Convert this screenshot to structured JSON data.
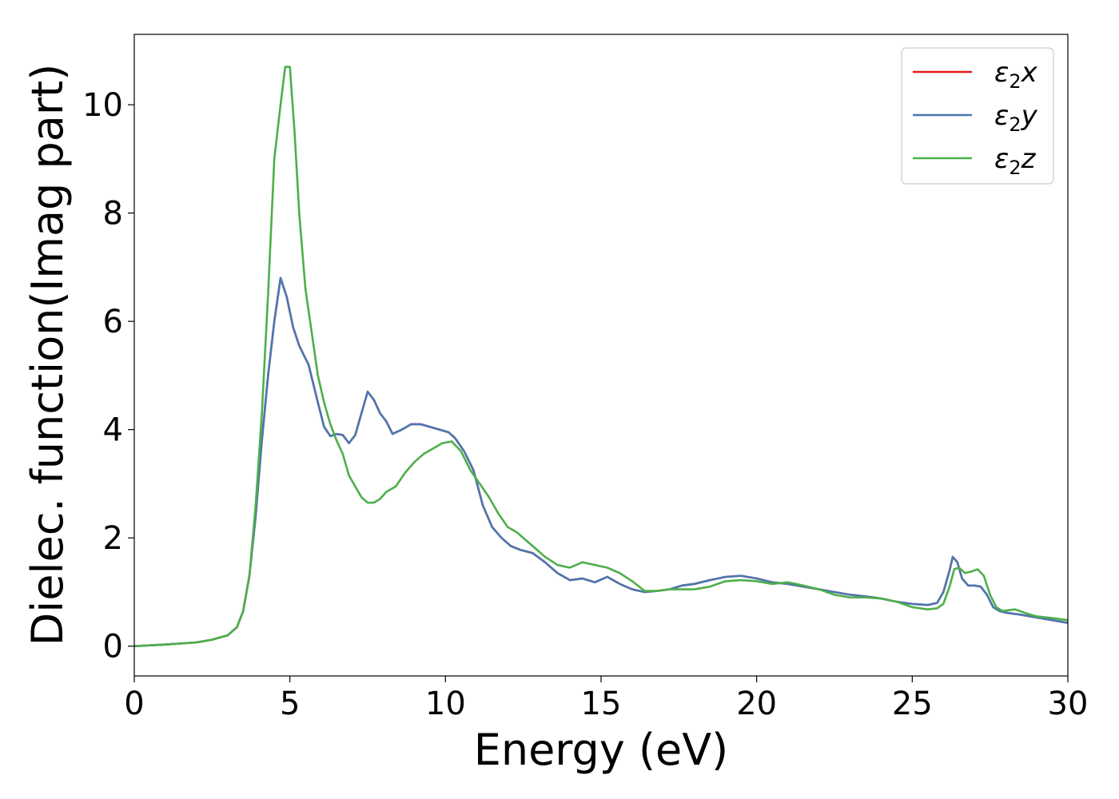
{
  "chart_data": {
    "type": "line",
    "xlabel": "Energy (eV)",
    "ylabel": "Dielec. function(Imag part)",
    "xlim": [
      0,
      30
    ],
    "ylim": [
      -0.55,
      11.3
    ],
    "xticks": [
      0,
      5,
      10,
      15,
      20,
      25,
      30
    ],
    "yticks": [
      0,
      2,
      4,
      6,
      8,
      10
    ],
    "grid": false,
    "legend_position": "top-right",
    "series": [
      {
        "name": "ε₂x",
        "legend_main": "ε",
        "legend_sub": "2",
        "legend_var": "x",
        "color": "#e41a1c",
        "x": [
          0,
          1,
          2,
          2.5,
          3,
          3.3,
          3.5,
          3.7,
          3.9,
          4.1,
          4.3,
          4.5,
          4.7,
          4.9,
          5.1,
          5.3,
          5.6,
          5.9,
          6.1,
          6.3,
          6.5,
          6.7,
          6.9,
          7.1,
          7.3,
          7.5,
          7.7,
          7.9,
          8.1,
          8.3,
          8.6,
          8.9,
          9.2,
          9.5,
          9.8,
          10.1,
          10.3,
          10.6,
          10.9,
          11.2,
          11.5,
          11.8,
          12.1,
          12.4,
          12.8,
          13.2,
          13.6,
          14,
          14.4,
          14.8,
          15.2,
          15.6,
          16,
          16.4,
          16.8,
          17.2,
          17.6,
          18,
          18.5,
          19,
          19.5,
          20,
          20.5,
          21,
          21.5,
          22,
          22.5,
          23,
          23.5,
          24,
          24.5,
          25,
          25.5,
          25.8,
          26,
          26.2,
          26.3,
          26.45,
          26.6,
          26.8,
          27,
          27.2,
          27.4,
          27.6,
          27.8,
          28,
          28.5,
          29,
          29.5,
          30
        ],
        "y": [
          0,
          0.03,
          0.07,
          0.12,
          0.2,
          0.35,
          0.65,
          1.3,
          2.4,
          3.8,
          5.0,
          6.0,
          6.8,
          6.45,
          5.9,
          5.55,
          5.2,
          4.5,
          4.05,
          3.88,
          3.92,
          3.9,
          3.75,
          3.9,
          4.3,
          4.7,
          4.55,
          4.3,
          4.15,
          3.92,
          4.0,
          4.1,
          4.1,
          4.05,
          4.0,
          3.95,
          3.85,
          3.6,
          3.25,
          2.6,
          2.2,
          2.0,
          1.85,
          1.78,
          1.72,
          1.55,
          1.35,
          1.22,
          1.25,
          1.18,
          1.28,
          1.15,
          1.05,
          1.0,
          1.02,
          1.05,
          1.12,
          1.15,
          1.22,
          1.28,
          1.3,
          1.25,
          1.18,
          1.15,
          1.1,
          1.05,
          1.0,
          0.95,
          0.92,
          0.88,
          0.82,
          0.78,
          0.76,
          0.8,
          1.0,
          1.4,
          1.65,
          1.55,
          1.25,
          1.12,
          1.12,
          1.1,
          0.95,
          0.72,
          0.65,
          0.62,
          0.58,
          0.53,
          0.48,
          0.43
        ]
      },
      {
        "name": "ε₂y",
        "legend_main": "ε",
        "legend_sub": "2",
        "legend_var": "y",
        "color": "#4a78b0",
        "x": [
          0,
          1,
          2,
          2.5,
          3,
          3.3,
          3.5,
          3.7,
          3.9,
          4.1,
          4.3,
          4.5,
          4.7,
          4.9,
          5.1,
          5.3,
          5.6,
          5.9,
          6.1,
          6.3,
          6.5,
          6.7,
          6.9,
          7.1,
          7.3,
          7.5,
          7.7,
          7.9,
          8.1,
          8.3,
          8.6,
          8.9,
          9.2,
          9.5,
          9.8,
          10.1,
          10.3,
          10.6,
          10.9,
          11.2,
          11.5,
          11.8,
          12.1,
          12.4,
          12.8,
          13.2,
          13.6,
          14,
          14.4,
          14.8,
          15.2,
          15.6,
          16,
          16.4,
          16.8,
          17.2,
          17.6,
          18,
          18.5,
          19,
          19.5,
          20,
          20.5,
          21,
          21.5,
          22,
          22.5,
          23,
          23.5,
          24,
          24.5,
          25,
          25.5,
          25.8,
          26,
          26.2,
          26.3,
          26.45,
          26.6,
          26.8,
          27,
          27.2,
          27.4,
          27.6,
          27.8,
          28,
          28.5,
          29,
          29.5,
          30
        ],
        "y": [
          0,
          0.03,
          0.07,
          0.12,
          0.2,
          0.35,
          0.65,
          1.3,
          2.4,
          3.8,
          5.0,
          6.0,
          6.8,
          6.45,
          5.9,
          5.55,
          5.2,
          4.5,
          4.05,
          3.88,
          3.92,
          3.9,
          3.75,
          3.9,
          4.3,
          4.7,
          4.55,
          4.3,
          4.15,
          3.92,
          4.0,
          4.1,
          4.1,
          4.05,
          4.0,
          3.95,
          3.85,
          3.6,
          3.25,
          2.6,
          2.2,
          2.0,
          1.85,
          1.78,
          1.72,
          1.55,
          1.35,
          1.22,
          1.25,
          1.18,
          1.28,
          1.15,
          1.05,
          1.0,
          1.02,
          1.05,
          1.12,
          1.15,
          1.22,
          1.28,
          1.3,
          1.25,
          1.18,
          1.15,
          1.1,
          1.05,
          1.0,
          0.95,
          0.92,
          0.88,
          0.82,
          0.78,
          0.76,
          0.8,
          1.0,
          1.4,
          1.65,
          1.55,
          1.25,
          1.12,
          1.12,
          1.1,
          0.95,
          0.72,
          0.65,
          0.62,
          0.58,
          0.53,
          0.48,
          0.43
        ]
      },
      {
        "name": "ε₂z",
        "legend_main": "ε",
        "legend_sub": "2",
        "legend_var": "z",
        "color": "#4daf4a",
        "x": [
          0,
          1,
          2,
          2.5,
          3,
          3.3,
          3.5,
          3.7,
          3.9,
          4.1,
          4.3,
          4.5,
          4.7,
          4.85,
          5.0,
          5.15,
          5.3,
          5.5,
          5.7,
          5.9,
          6.1,
          6.3,
          6.5,
          6.7,
          6.9,
          7.1,
          7.3,
          7.5,
          7.7,
          7.9,
          8.1,
          8.4,
          8.7,
          9.0,
          9.3,
          9.6,
          9.9,
          10.2,
          10.5,
          10.8,
          11.1,
          11.4,
          11.7,
          12.0,
          12.3,
          12.6,
          12.9,
          13.2,
          13.6,
          14.0,
          14.4,
          14.8,
          15.2,
          15.6,
          16,
          16.4,
          16.8,
          17.2,
          17.6,
          18,
          18.5,
          19,
          19.5,
          20,
          20.5,
          21,
          21.5,
          22,
          22.5,
          23,
          23.5,
          24,
          24.5,
          25,
          25.5,
          25.8,
          26,
          26.2,
          26.35,
          26.5,
          26.7,
          26.9,
          27.1,
          27.3,
          27.5,
          27.7,
          27.9,
          28.3,
          28.7,
          29,
          29.5,
          30
        ],
        "y": [
          0,
          0.03,
          0.07,
          0.12,
          0.2,
          0.35,
          0.65,
          1.3,
          2.6,
          4.3,
          6.5,
          9.0,
          10.0,
          10.7,
          10.7,
          9.5,
          8.0,
          6.6,
          5.8,
          5.0,
          4.5,
          4.1,
          3.8,
          3.55,
          3.15,
          2.95,
          2.75,
          2.65,
          2.65,
          2.72,
          2.85,
          2.95,
          3.2,
          3.4,
          3.55,
          3.65,
          3.75,
          3.78,
          3.6,
          3.25,
          3.0,
          2.75,
          2.45,
          2.2,
          2.1,
          1.95,
          1.8,
          1.65,
          1.5,
          1.45,
          1.55,
          1.5,
          1.45,
          1.35,
          1.2,
          1.02,
          1.02,
          1.05,
          1.05,
          1.05,
          1.1,
          1.2,
          1.22,
          1.2,
          1.15,
          1.18,
          1.12,
          1.05,
          0.95,
          0.9,
          0.9,
          0.88,
          0.82,
          0.72,
          0.68,
          0.7,
          0.78,
          1.1,
          1.42,
          1.45,
          1.35,
          1.38,
          1.42,
          1.3,
          0.95,
          0.72,
          0.65,
          0.68,
          0.6,
          0.55,
          0.52,
          0.48
        ]
      }
    ]
  }
}
